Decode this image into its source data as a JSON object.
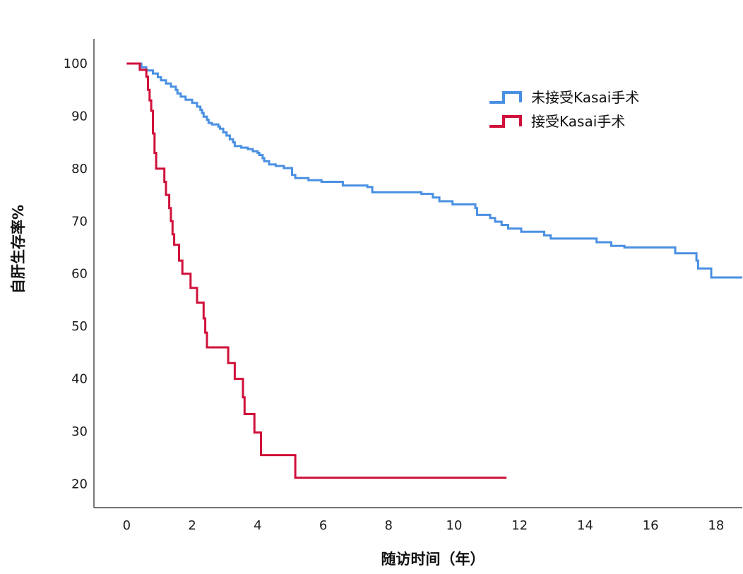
{
  "chart_data": {
    "type": "line",
    "step": true,
    "xlabel": "随访时间（年）",
    "ylabel": "自肝生存率%",
    "xlim": [
      -1,
      18.8
    ],
    "ylim": [
      15.5,
      104.7
    ],
    "xticks": [
      0,
      2,
      4,
      6,
      8,
      10,
      12,
      14,
      16,
      18
    ],
    "yticks": [
      20,
      30,
      40,
      50,
      60,
      70,
      80,
      90,
      100
    ],
    "grid": false,
    "legend_position": "top-right",
    "series": [
      {
        "name": "未接受Kasai手术",
        "color": "#4a90e2",
        "points": [
          [
            0,
            100
          ],
          [
            0.4,
            100
          ],
          [
            0.45,
            99.3
          ],
          [
            0.6,
            98.7
          ],
          [
            0.8,
            98.1
          ],
          [
            0.95,
            97.4
          ],
          [
            1.05,
            96.8
          ],
          [
            1.2,
            96.2
          ],
          [
            1.35,
            95.6
          ],
          [
            1.5,
            95.0
          ],
          [
            1.55,
            94.3
          ],
          [
            1.65,
            93.7
          ],
          [
            1.8,
            93.1
          ],
          [
            2.0,
            92.5
          ],
          [
            2.15,
            91.8
          ],
          [
            2.25,
            91.2
          ],
          [
            2.3,
            90.6
          ],
          [
            2.35,
            89.9
          ],
          [
            2.45,
            89.3
          ],
          [
            2.5,
            88.7
          ],
          [
            2.6,
            88.4
          ],
          [
            2.8,
            88.0
          ],
          [
            2.85,
            87.6
          ],
          [
            2.95,
            86.9
          ],
          [
            3.05,
            86.3
          ],
          [
            3.15,
            85.6
          ],
          [
            3.25,
            85.0
          ],
          [
            3.3,
            84.3
          ],
          [
            3.5,
            84.0
          ],
          [
            3.7,
            83.7
          ],
          [
            3.85,
            83.3
          ],
          [
            4.0,
            83.0
          ],
          [
            4.05,
            82.6
          ],
          [
            4.15,
            82.0
          ],
          [
            4.2,
            81.4
          ],
          [
            4.35,
            80.8
          ],
          [
            4.55,
            80.5
          ],
          [
            4.8,
            80.1
          ],
          [
            5.05,
            78.8
          ],
          [
            5.15,
            78.2
          ],
          [
            5.55,
            77.8
          ],
          [
            5.95,
            77.5
          ],
          [
            6.6,
            76.8
          ],
          [
            7.35,
            76.5
          ],
          [
            7.5,
            75.5
          ],
          [
            9.0,
            75.2
          ],
          [
            9.35,
            74.5
          ],
          [
            9.55,
            73.8
          ],
          [
            9.95,
            73.2
          ],
          [
            10.65,
            72.5
          ],
          [
            10.7,
            71.2
          ],
          [
            11.1,
            70.6
          ],
          [
            11.25,
            69.9
          ],
          [
            11.45,
            69.3
          ],
          [
            11.65,
            68.6
          ],
          [
            12.05,
            68.0
          ],
          [
            12.75,
            67.3
          ],
          [
            12.95,
            66.7
          ],
          [
            14.35,
            66.0
          ],
          [
            14.8,
            65.3
          ],
          [
            15.2,
            65.0
          ],
          [
            16.75,
            63.9
          ],
          [
            17.4,
            62.5
          ],
          [
            17.45,
            61.0
          ],
          [
            17.85,
            59.3
          ],
          [
            18.8,
            59.3
          ]
        ]
      },
      {
        "name": "接受Kasai手术",
        "color": "#d0103a",
        "points": [
          [
            0,
            100
          ],
          [
            0.35,
            100
          ],
          [
            0.4,
            98.8
          ],
          [
            0.6,
            97.5
          ],
          [
            0.65,
            95.0
          ],
          [
            0.7,
            93.0
          ],
          [
            0.75,
            91.0
          ],
          [
            0.8,
            86.7
          ],
          [
            0.85,
            83.0
          ],
          [
            0.9,
            80.0
          ],
          [
            1.1,
            80.0
          ],
          [
            1.15,
            77.5
          ],
          [
            1.2,
            75.0
          ],
          [
            1.3,
            72.5
          ],
          [
            1.35,
            70.0
          ],
          [
            1.4,
            67.5
          ],
          [
            1.45,
            65.5
          ],
          [
            1.55,
            65.5
          ],
          [
            1.6,
            62.5
          ],
          [
            1.7,
            60.0
          ],
          [
            1.9,
            60.0
          ],
          [
            1.95,
            57.3
          ],
          [
            2.1,
            57.3
          ],
          [
            2.15,
            54.5
          ],
          [
            2.3,
            54.5
          ],
          [
            2.35,
            51.5
          ],
          [
            2.4,
            48.8
          ],
          [
            2.45,
            46.0
          ],
          [
            3.05,
            46.0
          ],
          [
            3.1,
            43.0
          ],
          [
            3.25,
            43.0
          ],
          [
            3.3,
            40.0
          ],
          [
            3.5,
            40.0
          ],
          [
            3.55,
            36.5
          ],
          [
            3.6,
            33.3
          ],
          [
            3.85,
            33.3
          ],
          [
            3.9,
            29.8
          ],
          [
            4.05,
            29.8
          ],
          [
            4.1,
            25.5
          ],
          [
            5.1,
            25.5
          ],
          [
            5.15,
            21.2
          ],
          [
            11.6,
            21.2
          ]
        ]
      }
    ]
  }
}
